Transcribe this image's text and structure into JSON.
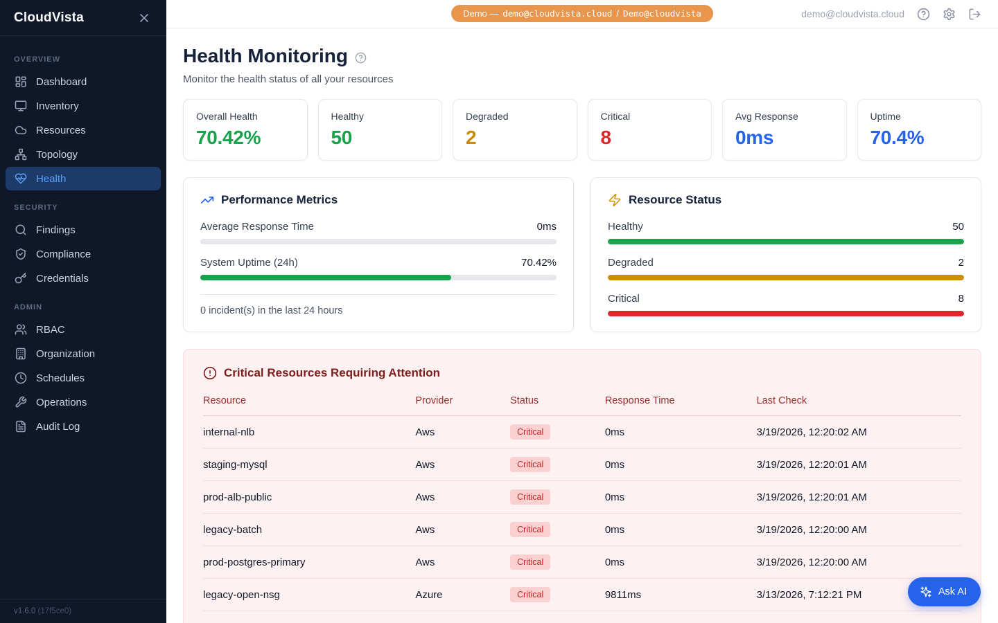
{
  "sidebar": {
    "brand": "CloudVista",
    "version": "v1.6.0",
    "build": "(17f5ce0)",
    "sections": [
      {
        "label": "OVERVIEW",
        "items": [
          {
            "label": "Dashboard"
          },
          {
            "label": "Inventory"
          },
          {
            "label": "Resources"
          },
          {
            "label": "Topology"
          },
          {
            "label": "Health"
          }
        ]
      },
      {
        "label": "SECURITY",
        "items": [
          {
            "label": "Findings"
          },
          {
            "label": "Compliance"
          },
          {
            "label": "Credentials"
          }
        ]
      },
      {
        "label": "ADMIN",
        "items": [
          {
            "label": "RBAC"
          },
          {
            "label": "Organization"
          },
          {
            "label": "Schedules"
          },
          {
            "label": "Operations"
          },
          {
            "label": "Audit Log"
          }
        ]
      }
    ]
  },
  "topbar": {
    "demo_prefix": "Demo —",
    "demo_email": "demo@cloudvista.cloud",
    "demo_separator": "/",
    "demo_account": "Demo@cloudvista",
    "user_email": "demo@cloudvista.cloud",
    "badge_color": "#e8964e"
  },
  "page": {
    "title": "Health Monitoring",
    "subtitle": "Monitor the health status of all your resources"
  },
  "stats": [
    {
      "label": "Overall Health",
      "value": "70.42%",
      "color": "#16a34a"
    },
    {
      "label": "Healthy",
      "value": "50",
      "color": "#16a34a"
    },
    {
      "label": "Degraded",
      "value": "2",
      "color": "#ca8a04"
    },
    {
      "label": "Critical",
      "value": "8",
      "color": "#dc2626"
    },
    {
      "label": "Avg Response",
      "value": "0ms",
      "color": "#2563eb"
    },
    {
      "label": "Uptime",
      "value": "70.4%",
      "color": "#2563eb"
    }
  ],
  "performance": {
    "title": "Performance Metrics",
    "metrics": [
      {
        "label": "Average Response Time",
        "value": "0ms",
        "percent": 0,
        "color": "#16a34a"
      },
      {
        "label": "System Uptime (24h)",
        "value": "70.42%",
        "percent": 70.42,
        "color": "#16a34a"
      }
    ],
    "footnote": "0 incident(s) in the last 24 hours"
  },
  "resource_status": {
    "title": "Resource Status",
    "rows": [
      {
        "label": "Healthy",
        "value": "50",
        "percent": 100,
        "color": "#1ea34d"
      },
      {
        "label": "Degraded",
        "value": "2",
        "percent": 100,
        "color": "#cd8c0a"
      },
      {
        "label": "Critical",
        "value": "8",
        "percent": 100,
        "color": "#d92b2b"
      }
    ]
  },
  "critical_table": {
    "title": "Critical Resources Requiring Attention",
    "columns": [
      "Resource",
      "Provider",
      "Status",
      "Response Time",
      "Last Check"
    ],
    "rows": [
      {
        "resource": "internal-nlb",
        "provider": "Aws",
        "status": "Critical",
        "response_time": "0ms",
        "last_check": "3/19/2026, 12:20:02 AM"
      },
      {
        "resource": "staging-mysql",
        "provider": "Aws",
        "status": "Critical",
        "response_time": "0ms",
        "last_check": "3/19/2026, 12:20:01 AM"
      },
      {
        "resource": "prod-alb-public",
        "provider": "Aws",
        "status": "Critical",
        "response_time": "0ms",
        "last_check": "3/19/2026, 12:20:01 AM"
      },
      {
        "resource": "legacy-batch",
        "provider": "Aws",
        "status": "Critical",
        "response_time": "0ms",
        "last_check": "3/19/2026, 12:20:00 AM"
      },
      {
        "resource": "prod-postgres-primary",
        "provider": "Aws",
        "status": "Critical",
        "response_time": "0ms",
        "last_check": "3/19/2026, 12:20:00 AM"
      },
      {
        "resource": "legacy-open-nsg",
        "provider": "Azure",
        "status": "Critical",
        "response_time": "9811ms",
        "last_check": "3/13/2026, 7:12:21 PM"
      }
    ]
  },
  "ask_ai": {
    "label": "Ask AI"
  }
}
